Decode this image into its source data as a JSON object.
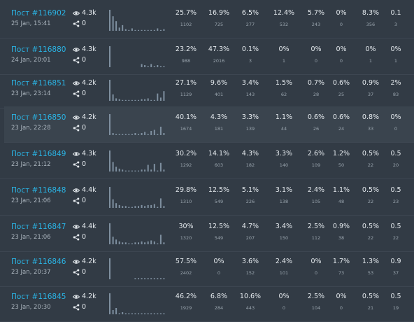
{
  "accent": "#2ab5e6",
  "bar_color": "#7f90a0",
  "icons": {
    "views": "eye-icon",
    "shares": "share-icon"
  },
  "highlighted_index": 3,
  "rows": [
    {
      "title": "Пост #116902",
      "date": "25 Jan, 15:41",
      "views": "4.3k",
      "shares": "0",
      "spark": [
        26,
        18,
        12,
        4,
        7,
        2,
        1,
        3,
        1,
        1,
        1,
        1,
        1,
        1,
        1,
        3,
        1,
        2
      ],
      "cols": [
        {
          "pct": "25.7%",
          "cnt": "1102"
        },
        {
          "pct": "16.9%",
          "cnt": "725"
        },
        {
          "pct": "6.5%",
          "cnt": "277"
        },
        {
          "pct": "12.4%",
          "cnt": "532"
        },
        {
          "pct": "5.7%",
          "cnt": "243"
        },
        {
          "pct": "0%",
          "cnt": "0"
        },
        {
          "pct": "8.3%",
          "cnt": "356"
        },
        {
          "pct": "0.1",
          "cnt": "3"
        }
      ]
    },
    {
      "title": "Пост #116880",
      "date": "24 Jan, 20:01",
      "views": "4.3k",
      "shares": "0",
      "spark": [
        20,
        0,
        0,
        0,
        0,
        0,
        0,
        0,
        0,
        0,
        3,
        2,
        1,
        3,
        1,
        2,
        1,
        1
      ],
      "cols": [
        {
          "pct": "23.2%",
          "cnt": "988"
        },
        {
          "pct": "47.3%",
          "cnt": "2016"
        },
        {
          "pct": "0.1%",
          "cnt": "3"
        },
        {
          "pct": "0%",
          "cnt": "1"
        },
        {
          "pct": "0%",
          "cnt": "0"
        },
        {
          "pct": "0%",
          "cnt": "0"
        },
        {
          "pct": "0%",
          "cnt": "1"
        },
        {
          "pct": "0%",
          "cnt": "1"
        }
      ]
    },
    {
      "title": "Пост #116851",
      "date": "23 Jan, 23:14",
      "views": "4.2k",
      "shares": "0",
      "spark": [
        26,
        8,
        3,
        2,
        1,
        1,
        1,
        1,
        1,
        1,
        2,
        2,
        3,
        1,
        1,
        9,
        4,
        12
      ],
      "cols": [
        {
          "pct": "27.1%",
          "cnt": "1129"
        },
        {
          "pct": "9.6%",
          "cnt": "401"
        },
        {
          "pct": "3.4%",
          "cnt": "143"
        },
        {
          "pct": "1.5%",
          "cnt": "62"
        },
        {
          "pct": "0.7%",
          "cnt": "28"
        },
        {
          "pct": "0.6%",
          "cnt": "25"
        },
        {
          "pct": "0.9%",
          "cnt": "37"
        },
        {
          "pct": "2%",
          "cnt": "83"
        }
      ]
    },
    {
      "title": "Пост #116850",
      "date": "23 Jan, 22:28",
      "views": "4.2k",
      "shares": "0",
      "spark": [
        20,
        2,
        1,
        1,
        1,
        1,
        1,
        1,
        2,
        1,
        2,
        3,
        1,
        4,
        5,
        1,
        8,
        2
      ],
      "cols": [
        {
          "pct": "40.1%",
          "cnt": "1674"
        },
        {
          "pct": "4.3%",
          "cnt": "181"
        },
        {
          "pct": "3.3%",
          "cnt": "139"
        },
        {
          "pct": "1.1%",
          "cnt": "44"
        },
        {
          "pct": "0.6%",
          "cnt": "26"
        },
        {
          "pct": "0.6%",
          "cnt": "24"
        },
        {
          "pct": "0.8%",
          "cnt": "33"
        },
        {
          "pct": "0%",
          "cnt": "0"
        }
      ]
    },
    {
      "title": "Пост #116849",
      "date": "23 Jan, 21:12",
      "views": "4.3k",
      "shares": "0",
      "spark": [
        22,
        10,
        5,
        3,
        2,
        1,
        1,
        1,
        1,
        1,
        2,
        2,
        7,
        2,
        8,
        1,
        9,
        2
      ],
      "cols": [
        {
          "pct": "30.2%",
          "cnt": "1292"
        },
        {
          "pct": "14.1%",
          "cnt": "603"
        },
        {
          "pct": "4.3%",
          "cnt": "182"
        },
        {
          "pct": "3.3%",
          "cnt": "140"
        },
        {
          "pct": "2.6%",
          "cnt": "109"
        },
        {
          "pct": "1.2%",
          "cnt": "50"
        },
        {
          "pct": "0.5%",
          "cnt": "22"
        },
        {
          "pct": "0.5",
          "cnt": "20"
        }
      ]
    },
    {
      "title": "Пост #116848",
      "date": "23 Jan, 21:06",
      "views": "4.4k",
      "shares": "0",
      "spark": [
        22,
        9,
        5,
        3,
        2,
        2,
        1,
        1,
        2,
        2,
        3,
        2,
        3,
        3,
        4,
        1,
        10,
        2
      ],
      "cols": [
        {
          "pct": "29.8%",
          "cnt": "1310"
        },
        {
          "pct": "12.5%",
          "cnt": "549"
        },
        {
          "pct": "5.1%",
          "cnt": "226"
        },
        {
          "pct": "3.1%",
          "cnt": "138"
        },
        {
          "pct": "2.4%",
          "cnt": "105"
        },
        {
          "pct": "1.1%",
          "cnt": "48"
        },
        {
          "pct": "0.5%",
          "cnt": "22"
        },
        {
          "pct": "0.5",
          "cnt": "23"
        }
      ]
    },
    {
      "title": "Пост #116847",
      "date": "23 Jan, 21:06",
      "views": "4.4k",
      "shares": "0",
      "spark": [
        22,
        8,
        5,
        3,
        2,
        2,
        1,
        1,
        2,
        2,
        3,
        2,
        3,
        4,
        3,
        1,
        10,
        2
      ],
      "cols": [
        {
          "pct": "30%",
          "cnt": "1320"
        },
        {
          "pct": "12.5%",
          "cnt": "549"
        },
        {
          "pct": "4.7%",
          "cnt": "207"
        },
        {
          "pct": "3.4%",
          "cnt": "150"
        },
        {
          "pct": "2.5%",
          "cnt": "112"
        },
        {
          "pct": "0.9%",
          "cnt": "38"
        },
        {
          "pct": "0.5%",
          "cnt": "22"
        },
        {
          "pct": "0.5",
          "cnt": "22"
        }
      ]
    },
    {
      "title": "Пост #116846",
      "date": "23 Jan, 20:37",
      "views": "4.2k",
      "shares": "0",
      "spark": [
        18,
        0,
        0,
        0,
        0,
        0,
        0,
        0,
        1,
        1,
        1,
        1,
        1,
        1,
        1,
        1,
        1,
        1
      ],
      "cols": [
        {
          "pct": "57.5%",
          "cnt": "2402"
        },
        {
          "pct": "0%",
          "cnt": "0"
        },
        {
          "pct": "3.6%",
          "cnt": "152"
        },
        {
          "pct": "2.4%",
          "cnt": "101"
        },
        {
          "pct": "0%",
          "cnt": "0"
        },
        {
          "pct": "1.7%",
          "cnt": "73"
        },
        {
          "pct": "1.3%",
          "cnt": "53"
        },
        {
          "pct": "0.9",
          "cnt": "37"
        }
      ]
    },
    {
      "title": "Пост #116845",
      "date": "23 Jan, 20:30",
      "views": "4.2k",
      "shares": "0",
      "spark": [
        20,
        4,
        6,
        1,
        2,
        1,
        1,
        1,
        1,
        1,
        1,
        1,
        1,
        1,
        1,
        1,
        1,
        1
      ],
      "cols": [
        {
          "pct": "46.2%",
          "cnt": "1929"
        },
        {
          "pct": "6.8%",
          "cnt": "284"
        },
        {
          "pct": "10.6%",
          "cnt": "443"
        },
        {
          "pct": "0%",
          "cnt": "0"
        },
        {
          "pct": "2.5%",
          "cnt": "104"
        },
        {
          "pct": "0%",
          "cnt": "0"
        },
        {
          "pct": "0.5%",
          "cnt": "21"
        },
        {
          "pct": "0.5",
          "cnt": "19"
        }
      ]
    }
  ]
}
